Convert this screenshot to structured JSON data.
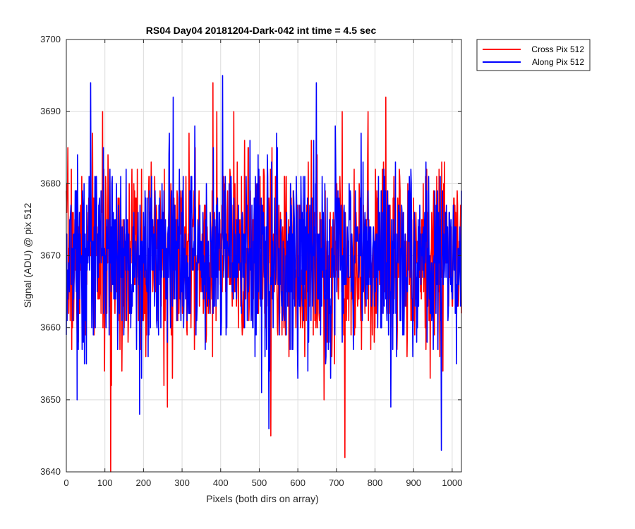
{
  "chart_data": {
    "type": "line",
    "title": "RS04 Day04 20181204-Dark-042 int time = 4.5 sec",
    "xlabel": "Pixels (both dirs on array)",
    "ylabel": "Signal (ADU) @ pix 512",
    "xlim": [
      0,
      1024
    ],
    "ylim": [
      3640,
      3700
    ],
    "xticks": [
      0,
      100,
      200,
      300,
      400,
      500,
      600,
      700,
      800,
      900,
      1000
    ],
    "yticks": [
      3640,
      3650,
      3660,
      3670,
      3680,
      3690,
      3700
    ],
    "grid": true,
    "legend_position": "outside-top-right",
    "noise": {
      "mean": 3670,
      "std": 6.5
    },
    "series": [
      {
        "name": "Cross Pix 512",
        "color": "#ff0000",
        "seed": 7,
        "extremes": [
          [
            115,
            3640
          ],
          [
            380,
            3694
          ],
          [
            722,
            3642
          ],
          [
            828,
            3692
          ],
          [
            262,
            3649
          ],
          [
            530,
            3645
          ],
          [
            715,
            3690
          ]
        ]
      },
      {
        "name": "Along Pix 512",
        "color": "#0000ff",
        "seed": 13,
        "extremes": [
          [
            63,
            3694
          ],
          [
            405,
            3695
          ],
          [
            648,
            3694
          ],
          [
            972,
            3643
          ],
          [
            525,
            3646
          ],
          [
            190,
            3648
          ],
          [
            28,
            3650
          ]
        ]
      }
    ]
  }
}
